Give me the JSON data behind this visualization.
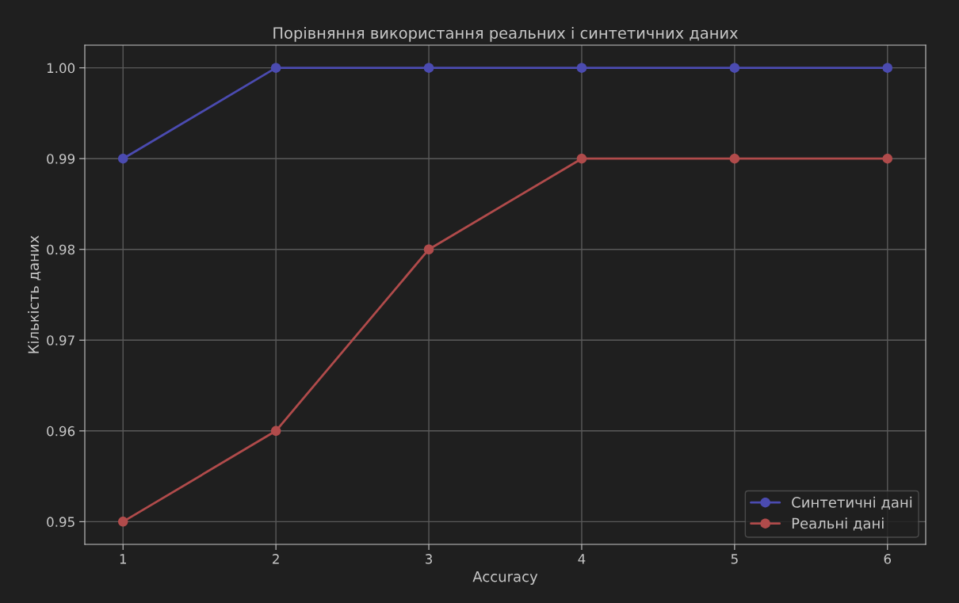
{
  "chart_data": {
    "type": "line",
    "title": "Порівняння використання реальних і синтетичних даних",
    "xlabel": "Accuracy",
    "ylabel": "Кількість даних",
    "x": [
      1,
      2,
      3,
      4,
      5,
      6
    ],
    "series": [
      {
        "name": "Синтетичні дані",
        "color": "#4b4bb0",
        "values": [
          0.99,
          1.0,
          1.0,
          1.0,
          1.0,
          1.0
        ]
      },
      {
        "name": "Реальні дані",
        "color": "#b04b4b",
        "values": [
          0.95,
          0.96,
          0.98,
          0.99,
          0.99,
          0.99
        ]
      }
    ],
    "xlim": [
      0.75,
      6.25
    ],
    "xticks": [
      1,
      2,
      3,
      4,
      5,
      6
    ],
    "ylim": [
      0.9475,
      1.0025
    ],
    "yticks": [
      {
        "value": 0.95,
        "label": "0.95"
      },
      {
        "value": 0.96,
        "label": "0.96"
      },
      {
        "value": 0.97,
        "label": "0.97"
      },
      {
        "value": 0.98,
        "label": "0.98"
      },
      {
        "value": 0.99,
        "label": "0.99"
      },
      {
        "value": 1.0,
        "label": "1.00"
      }
    ],
    "grid": true,
    "legend": "bottom right",
    "marker": "circle",
    "line_style": "solid"
  }
}
